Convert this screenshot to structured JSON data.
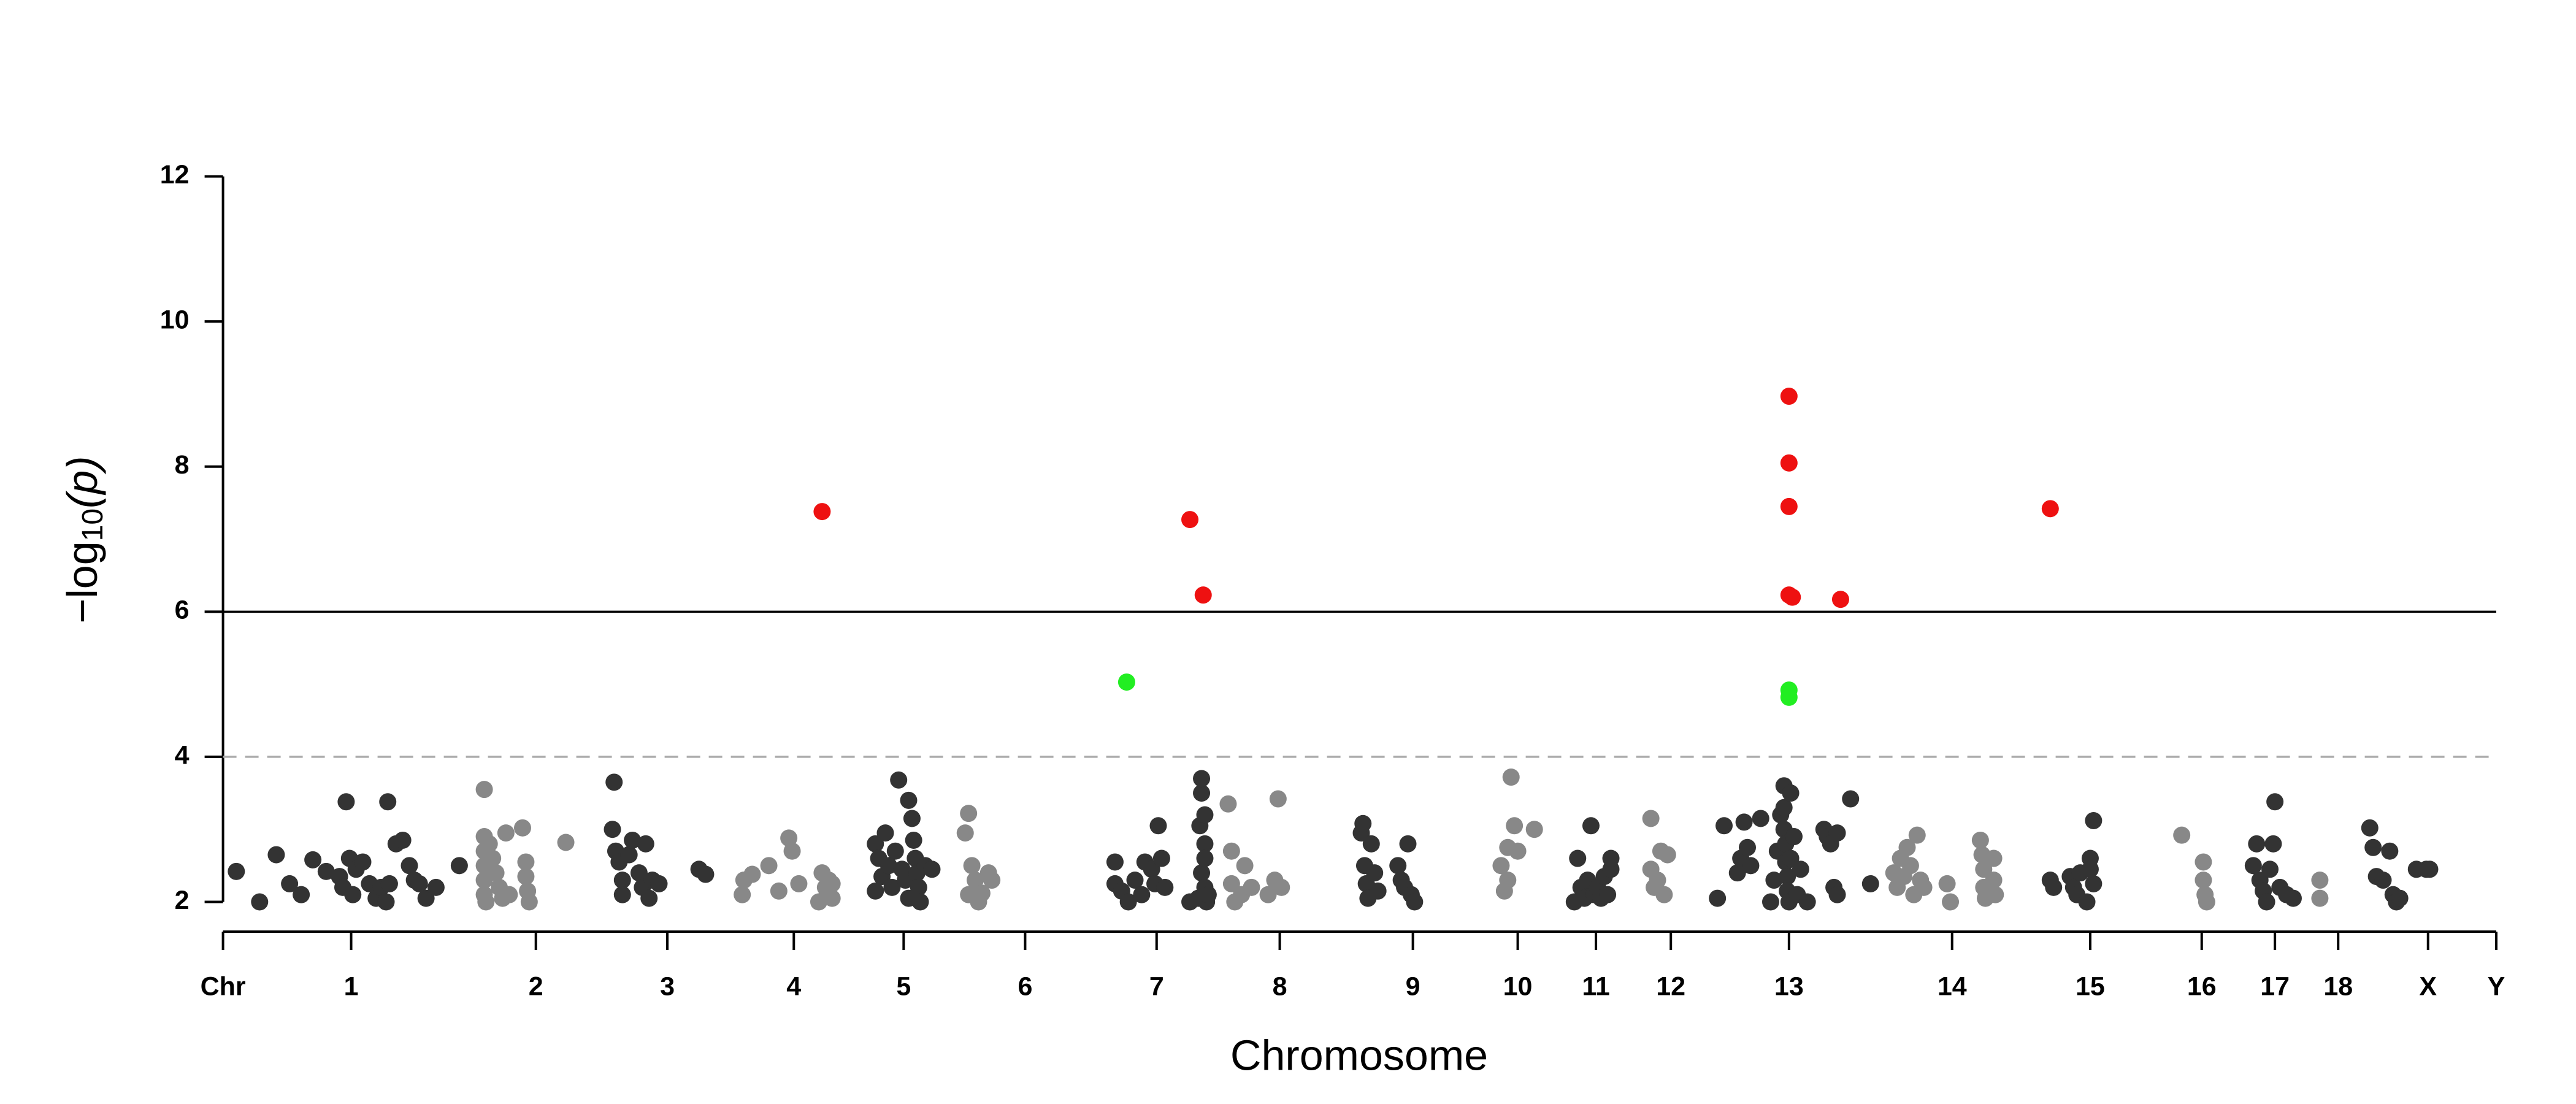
{
  "chart_data": {
    "type": "scatter",
    "xlabel": "Chromosome",
    "ylabel": {
      "prefix": "−log",
      "sub": "10",
      "suffix": "(p)"
    },
    "xlim": [
      0,
      1366
    ],
    "ylim": [
      1.6,
      12
    ],
    "yticks": [
      2,
      4,
      6,
      8,
      10,
      12
    ],
    "xticks": [
      {
        "value": 0,
        "label": "Chr"
      },
      {
        "value": 77,
        "label": "1"
      },
      {
        "value": 188,
        "label": "2"
      },
      {
        "value": 267,
        "label": "3"
      },
      {
        "value": 343,
        "label": "4"
      },
      {
        "value": 409,
        "label": "5"
      },
      {
        "value": 482,
        "label": "6"
      },
      {
        "value": 561,
        "label": "7"
      },
      {
        "value": 635,
        "label": "8"
      },
      {
        "value": 715,
        "label": "9"
      },
      {
        "value": 778,
        "label": "10"
      },
      {
        "value": 825,
        "label": "11"
      },
      {
        "value": 870,
        "label": "12"
      },
      {
        "value": 941,
        "label": "13"
      },
      {
        "value": 1039,
        "label": "14"
      },
      {
        "value": 1122,
        "label": "15"
      },
      {
        "value": 1189,
        "label": "16"
      },
      {
        "value": 1233,
        "label": "17"
      },
      {
        "value": 1271,
        "label": "18"
      },
      {
        "value": 1325,
        "label": "X"
      },
      {
        "value": 1366,
        "label": "Y"
      }
    ],
    "hlines": [
      {
        "value": 6,
        "style": "solid",
        "color": "#000000"
      },
      {
        "value": 4,
        "style": "dashed",
        "color": "#aaaaaa"
      }
    ],
    "series": [
      {
        "color": "#333333",
        "x": [
          8,
          22,
          32,
          40,
          47,
          54,
          62,
          70,
          72,
          74,
          76,
          78,
          80,
          84,
          88,
          92,
          95,
          98,
          99,
          100,
          104,
          108,
          112,
          115,
          118,
          122,
          128,
          142,
          234,
          235,
          236,
          238,
          240,
          240,
          244,
          246,
          250,
          252,
          254,
          256,
          258,
          262,
          286,
          290,
          392,
          392,
          394,
          396,
          398,
          400,
          402,
          404,
          406,
          408,
          410,
          412,
          412,
          414,
          415,
          416,
          417,
          418,
          419,
          422,
          426,
          536,
          536,
          540,
          544,
          548,
          552,
          554,
          558,
          560,
          562,
          564,
          566,
          581,
          586,
          587,
          588,
          588,
          588,
          590,
          590,
          590,
          590,
          591,
          592,
          684,
          685,
          686,
          687,
          688,
          690,
          692,
          694,
          706,
          708,
          710,
          712,
          714,
          716,
          812,
          814,
          816,
          818,
          820,
          822,
          824,
          826,
          828,
          830,
          832,
          834,
          834,
          898,
          902,
          910,
          912,
          914,
          916,
          918,
          924,
          930,
          932,
          934,
          936,
          938,
          938,
          938,
          939,
          939,
          940,
          940,
          941,
          942,
          942,
          944,
          946,
          948,
          952,
          962,
          964,
          966,
          968,
          970,
          970,
          978,
          990,
          1098,
          1100,
          1110,
          1112,
          1114,
          1116,
          1120,
          1122,
          1122,
          1124,
          1124,
          1220,
          1222,
          1224,
          1226,
          1228,
          1230,
          1232,
          1233,
          1236,
          1240,
          1244,
          1290,
          1292,
          1294,
          1298,
          1302,
          1304,
          1306,
          1308,
          1318,
          1324,
          1326
        ],
        "values": [
          2.42,
          2.0,
          2.65,
          2.25,
          2.1,
          2.58,
          2.42,
          2.35,
          2.2,
          3.38,
          2.6,
          2.1,
          2.45,
          2.55,
          2.25,
          2.05,
          2.2,
          2.0,
          3.38,
          2.25,
          2.8,
          2.85,
          2.5,
          2.3,
          2.25,
          2.05,
          2.2,
          2.5,
          3.0,
          3.65,
          2.7,
          2.55,
          2.3,
          2.1,
          2.65,
          2.85,
          2.4,
          2.2,
          2.8,
          2.05,
          2.3,
          2.25,
          2.45,
          2.38,
          2.8,
          2.15,
          2.6,
          2.35,
          2.95,
          2.5,
          2.2,
          2.7,
          3.68,
          2.45,
          2.3,
          3.4,
          2.05,
          3.15,
          2.85,
          2.6,
          2.4,
          2.2,
          2.0,
          2.5,
          2.45,
          2.55,
          2.25,
          2.15,
          2.0,
          2.3,
          2.1,
          2.55,
          2.45,
          2.25,
          3.05,
          2.6,
          2.2,
          2.0,
          2.05,
          3.05,
          3.5,
          3.7,
          2.4,
          3.2,
          2.8,
          2.6,
          2.2,
          2.0,
          2.1,
          2.95,
          3.08,
          2.5,
          2.25,
          2.05,
          2.8,
          2.4,
          2.15,
          2.5,
          2.3,
          2.2,
          2.8,
          2.1,
          2.0,
          2.0,
          2.6,
          2.2,
          2.05,
          2.3,
          3.05,
          2.1,
          2.2,
          2.05,
          2.35,
          2.1,
          2.45,
          2.6,
          2.05,
          3.05,
          2.4,
          2.6,
          3.1,
          2.75,
          2.5,
          3.15,
          2.0,
          2.3,
          2.7,
          3.2,
          3.6,
          3.3,
          3.0,
          2.8,
          2.55,
          2.35,
          2.15,
          2.0,
          3.5,
          2.6,
          2.9,
          2.1,
          2.45,
          2.0,
          3.0,
          2.9,
          2.8,
          2.2,
          2.95,
          2.1,
          3.42,
          2.25,
          2.3,
          2.2,
          2.35,
          2.2,
          2.1,
          2.4,
          2.0,
          2.6,
          2.45,
          2.25,
          3.12,
          2.5,
          2.8,
          2.3,
          2.15,
          2.0,
          2.45,
          2.8,
          3.38,
          2.2,
          2.1,
          2.05,
          3.02,
          2.75,
          2.35,
          2.3,
          2.7,
          2.1,
          2.0,
          2.05,
          2.45,
          2.45,
          2.45
        ]
      },
      {
        "color": "#888888",
        "x": [
          157,
          157,
          157,
          157,
          157,
          157,
          158,
          160,
          162,
          164,
          166,
          168,
          170,
          172,
          180,
          182,
          182,
          183,
          184,
          206,
          312,
          313,
          318,
          328,
          334,
          340,
          342,
          346,
          358,
          360,
          362,
          363,
          364,
          366,
          366,
          446,
          448,
          448,
          450,
          452,
          454,
          456,
          460,
          462,
          604,
          606,
          606,
          608,
          612,
          614,
          618,
          628,
          632,
          634,
          636,
          768,
          770,
          772,
          772,
          776,
          774,
          778,
          788,
          858,
          858,
          860,
          862,
          864,
          866,
          868,
          1004,
          1006,
          1008,
          1010,
          1012,
          1014,
          1016,
          1018,
          1020,
          1022,
          1036,
          1038,
          1056,
          1057,
          1058,
          1058,
          1059,
          1064,
          1064,
          1065,
          1177,
          1190,
          1190,
          1191,
          1192,
          1260,
          1260
        ],
        "values": [
          3.55,
          2.9,
          2.7,
          2.5,
          2.3,
          2.1,
          2.0,
          2.8,
          2.6,
          2.4,
          2.2,
          2.05,
          2.95,
          2.1,
          3.02,
          2.55,
          2.35,
          2.15,
          2.0,
          2.82,
          2.1,
          2.3,
          2.38,
          2.5,
          2.15,
          2.88,
          2.7,
          2.25,
          2.0,
          2.4,
          2.2,
          2.1,
          2.3,
          2.05,
          2.25,
          2.95,
          3.22,
          2.1,
          2.5,
          2.3,
          2.0,
          2.12,
          2.4,
          2.3,
          3.35,
          2.7,
          2.25,
          2.0,
          2.1,
          2.5,
          2.2,
          2.1,
          2.3,
          3.42,
          2.2,
          2.5,
          2.15,
          2.3,
          2.75,
          3.05,
          3.72,
          2.7,
          3.0,
          3.15,
          2.45,
          2.2,
          2.3,
          2.7,
          2.1,
          2.65,
          2.4,
          2.2,
          2.6,
          2.35,
          2.75,
          2.5,
          2.1,
          2.92,
          2.3,
          2.2,
          2.25,
          2.0,
          2.85,
          2.65,
          2.45,
          2.2,
          2.05,
          2.6,
          2.3,
          2.1,
          2.92,
          2.55,
          2.3,
          2.1,
          2.0,
          2.3,
          2.05
        ]
      },
      {
        "color": "#ee1111",
        "x": [
          360,
          581,
          589,
          941,
          941,
          941,
          941,
          943,
          972,
          1098
        ],
        "values": [
          7.38,
          7.27,
          6.23,
          8.97,
          8.05,
          7.45,
          6.23,
          6.2,
          6.17,
          7.42
        ]
      },
      {
        "color": "#22ee22",
        "x": [
          543,
          941,
          941
        ],
        "values": [
          5.03,
          4.92,
          4.82
        ]
      }
    ]
  }
}
